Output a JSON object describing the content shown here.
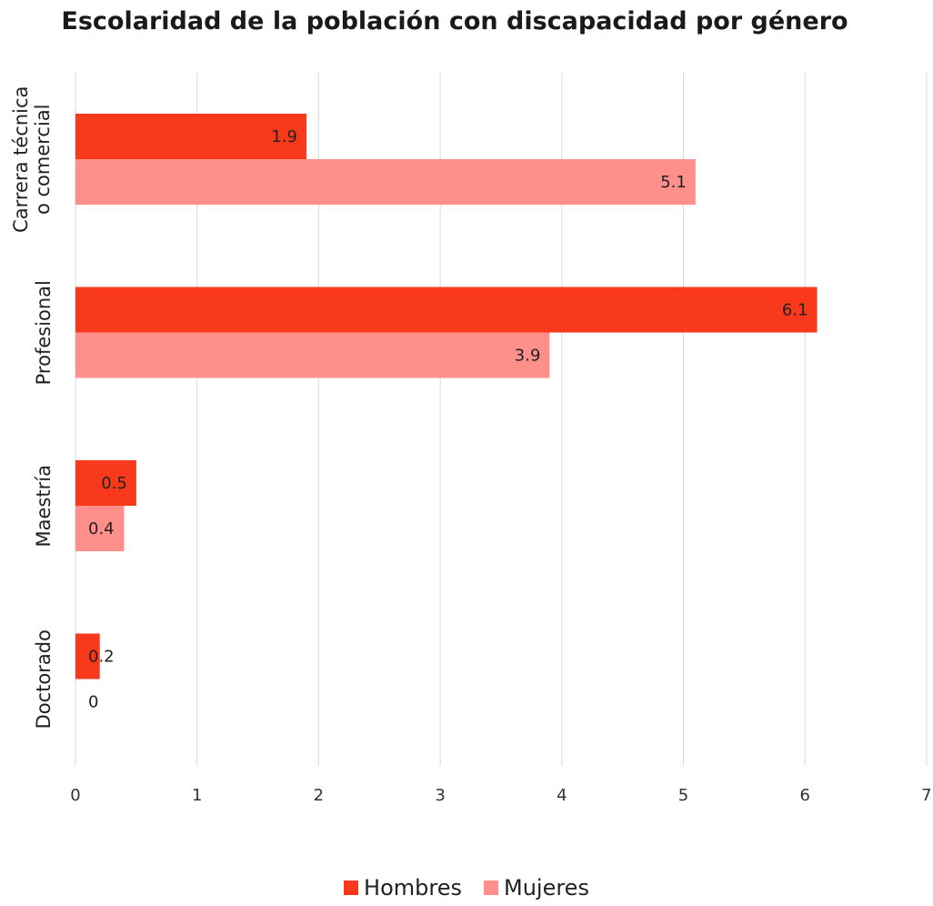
{
  "chart_data": {
    "type": "bar",
    "orientation": "horizontal",
    "title": "Escolaridad de la población con discapacidad por género",
    "categories": [
      "Carrera técnica o comercial",
      "Profesional",
      "Maestría",
      "Doctorado"
    ],
    "category_label_lines": [
      [
        "Carrera técnica",
        "o comercial"
      ],
      [
        "Profesional"
      ],
      [
        "Maestría"
      ],
      [
        "Doctorado"
      ]
    ],
    "series": [
      {
        "name": "Hombres",
        "values": [
          1.9,
          6.1,
          0.5,
          0.2
        ],
        "color": "#f8391c"
      },
      {
        "name": "Mujeres",
        "values": [
          5.1,
          3.9,
          0.4,
          0
        ],
        "color": "#ff8f8a"
      }
    ],
    "x_ticks": [
      "0",
      "1",
      "2",
      "3",
      "4",
      "5",
      "6",
      "7"
    ],
    "xlim": [
      0,
      7
    ],
    "grid": true,
    "legend_position": "bottom",
    "data_labels": true
  }
}
